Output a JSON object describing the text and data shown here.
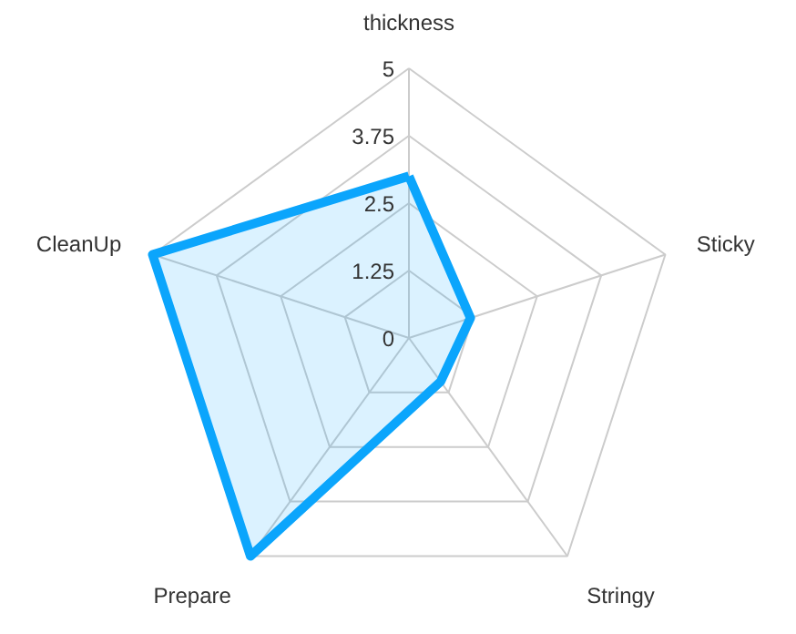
{
  "chart_data": {
    "type": "radar",
    "categories": [
      "thickness",
      "Sticky",
      "Stringy",
      "Prepare",
      "CleanUp"
    ],
    "series": [
      {
        "color": "#0ba5fc",
        "values": [
          3.0,
          1.2,
          1.0,
          5.0,
          5.0
        ]
      }
    ],
    "ylim": [
      0,
      5
    ],
    "yticks": [
      0,
      1.25,
      2.5,
      3.75,
      5
    ],
    "grid": true
  }
}
